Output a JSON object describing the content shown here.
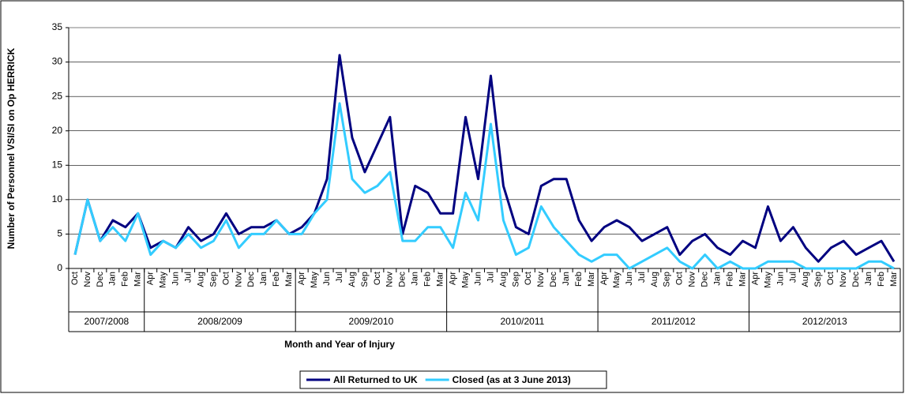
{
  "chart_data": {
    "type": "line",
    "y_label": "Number of Personnel VSI/SI on Op HERRICK",
    "x_label": "Month and Year of Injury",
    "categories": [
      "Oct",
      "Nov",
      "Dec",
      "Jan",
      "Feb",
      "Mar",
      "Apr",
      "May",
      "Jun",
      "Jul",
      "Aug",
      "Sep",
      "Oct",
      "Nov",
      "Dec",
      "Jan",
      "Feb",
      "Mar",
      "Apr",
      "May",
      "Jun",
      "Jul",
      "Aug",
      "Sep",
      "Oct",
      "Nov",
      "Dec",
      "Jan",
      "Feb",
      "Mar",
      "Apr",
      "May",
      "Jun",
      "Jul",
      "Aug",
      "Sep",
      "Oct",
      "Nov",
      "Dec",
      "Jan",
      "Feb",
      "Mar",
      "Apr",
      "May",
      "Jun",
      "Jul",
      "Aug",
      "Sep",
      "Oct",
      "Nov",
      "Dec",
      "Jan",
      "Feb",
      "Mar",
      "Apr",
      "May",
      "Jun",
      "Jul",
      "Aug",
      "Sep",
      "Oct",
      "Nov",
      "Dec",
      "Jan",
      "Feb",
      "Mar"
    ],
    "groups": [
      "2007/2008",
      "2008/2009",
      "2009/2010",
      "2010/2011",
      "2011/2012",
      "2012/2013"
    ],
    "series": [
      {
        "name": "All Returned to UK",
        "color": "#000080",
        "values": [
          2,
          10,
          4,
          7,
          6,
          8,
          3,
          4,
          3,
          6,
          4,
          5,
          8,
          5,
          6,
          6,
          7,
          5,
          6,
          8,
          13,
          31,
          19,
          14,
          18,
          22,
          5,
          12,
          11,
          8,
          8,
          22,
          13,
          28,
          12,
          6,
          5,
          12,
          13,
          13,
          7,
          4,
          6,
          7,
          6,
          4,
          5,
          6,
          2,
          4,
          5,
          3,
          2,
          4,
          3,
          9,
          4,
          6,
          3,
          1,
          3,
          4,
          2,
          3,
          4,
          1
        ]
      },
      {
        "name": "Closed (as at 3 June 2013)",
        "color": "#33ccff",
        "values": [
          2,
          10,
          4,
          6,
          4,
          8,
          2,
          4,
          3,
          5,
          3,
          4,
          7,
          3,
          5,
          5,
          7,
          5,
          5,
          8,
          10,
          24,
          13,
          11,
          12,
          14,
          4,
          4,
          6,
          6,
          3,
          11,
          7,
          21,
          7,
          2,
          3,
          9,
          6,
          4,
          2,
          1,
          2,
          2,
          0,
          1,
          2,
          3,
          1,
          0,
          2,
          0,
          1,
          0,
          0,
          1,
          1,
          1,
          0,
          0,
          0,
          0,
          0,
          1,
          1,
          0
        ]
      }
    ],
    "ylim": [
      0,
      35
    ],
    "yticks": [
      0,
      5,
      10,
      15,
      20,
      25,
      30,
      35
    ],
    "grid": true,
    "legend": "bottom"
  }
}
